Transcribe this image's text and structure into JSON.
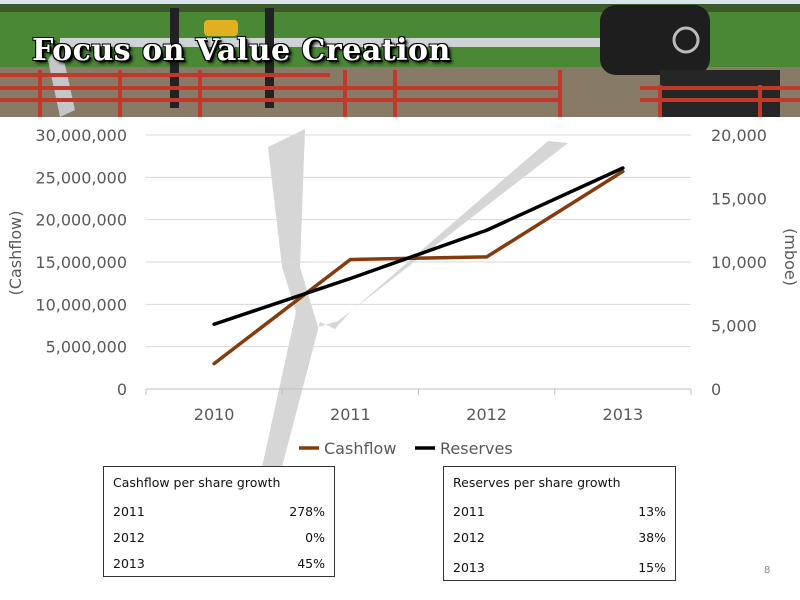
{
  "slide": {
    "title": "Focus on Value Creation",
    "page_number": "8"
  },
  "colors": {
    "cashflow": "#843c0c",
    "reserves": "#000000",
    "gridline": "#d9d9d9",
    "watermark": "#cfcfcf"
  },
  "chart_data": {
    "type": "line",
    "categories": [
      "2010",
      "2011",
      "2012",
      "2013"
    ],
    "series": [
      {
        "name": "Cashflow",
        "axis": "left",
        "values": [
          3000000,
          15300000,
          15600000,
          25700000
        ]
      },
      {
        "name": "Reserves",
        "axis": "right",
        "values": [
          5100,
          8700,
          12500,
          17400
        ]
      }
    ],
    "ylabel_left": "(Cashflow)",
    "ylabel_right": "(mboe)",
    "ylim_left": [
      0,
      30000000
    ],
    "ylim_right": [
      0,
      20000
    ],
    "yticks_left": [
      "0",
      "5,000,000",
      "10,000,000",
      "15,000,000",
      "20,000,000",
      "25,000,000",
      "30,000,000"
    ],
    "yticks_right": [
      "0",
      "5,000",
      "10,000",
      "15,000",
      "20,000"
    ],
    "grid": true,
    "legend": "bottom"
  },
  "cashflow_table": {
    "header": "Cashflow per share growth",
    "rows": [
      {
        "year": "2011",
        "value": "278%"
      },
      {
        "year": "2012",
        "value": "0%"
      },
      {
        "year": "2013",
        "value": "45%"
      }
    ]
  },
  "reserves_table": {
    "header": "Reserves per share growth",
    "rows": [
      {
        "year": "2011",
        "value": "13%"
      },
      {
        "year": "2012",
        "value": "38%"
      },
      {
        "year": "2013",
        "value": "15%"
      }
    ]
  }
}
